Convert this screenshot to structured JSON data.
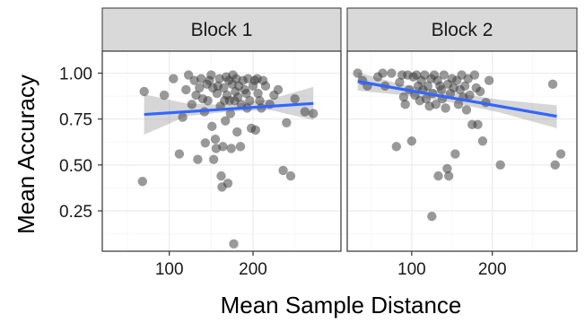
{
  "chart_data": {
    "type": "scatter",
    "facets": [
      "Block 1",
      "Block 2"
    ],
    "xlabel": "Mean Sample Distance",
    "ylabel": "Mean Accuracy",
    "xlim": [
      20,
      305
    ],
    "ylim": [
      0.03,
      1.12
    ],
    "x_ticks": [
      100,
      200
    ],
    "y_ticks": [
      0.25,
      0.5,
      0.75,
      1.0
    ],
    "y_tick_labels": [
      "0.25",
      "0.50",
      "0.75",
      "1.00"
    ],
    "grid": true,
    "colors": {
      "point": "#333333",
      "trend": "#3366ff",
      "ribbon": "#999999",
      "strip": "#d9d9d9",
      "grid_major": "#ebebeb",
      "grid_minor": "#f5f5f5",
      "border": "#333333"
    },
    "panels": [
      {
        "name": "Block 1",
        "points": [
          [
            70,
            0.9
          ],
          [
            68,
            0.41
          ],
          [
            94,
            0.88
          ],
          [
            105,
            0.97
          ],
          [
            112,
            0.56
          ],
          [
            116,
            0.76
          ],
          [
            120,
            0.91
          ],
          [
            123,
            0.99
          ],
          [
            127,
            0.83
          ],
          [
            130,
            0.96
          ],
          [
            132,
            0.88
          ],
          [
            134,
            0.53
          ],
          [
            136,
            0.92
          ],
          [
            138,
            0.97
          ],
          [
            140,
            0.86
          ],
          [
            142,
            0.79
          ],
          [
            143,
            0.62
          ],
          [
            145,
            0.94
          ],
          [
            146,
            0.85
          ],
          [
            148,
            0.96
          ],
          [
            150,
            0.99
          ],
          [
            151,
            0.71
          ],
          [
            152,
            0.92
          ],
          [
            153,
            0.53
          ],
          [
            155,
            0.64
          ],
          [
            156,
            0.59
          ],
          [
            157,
            0.89
          ],
          [
            158,
            0.93
          ],
          [
            160,
            0.97
          ],
          [
            161,
            0.82
          ],
          [
            162,
            0.44
          ],
          [
            163,
            0.38
          ],
          [
            164,
            0.6
          ],
          [
            165,
            0.92
          ],
          [
            166,
            0.85
          ],
          [
            167,
            0.74
          ],
          [
            168,
            0.98
          ],
          [
            169,
            0.88
          ],
          [
            170,
            0.4
          ],
          [
            171,
            0.96
          ],
          [
            172,
            0.85
          ],
          [
            173,
            0.78
          ],
          [
            174,
            0.59
          ],
          [
            175,
            0.94
          ],
          [
            176,
            0.99
          ],
          [
            177,
            0.07
          ],
          [
            178,
            0.85
          ],
          [
            179,
            0.9
          ],
          [
            180,
            0.97
          ],
          [
            181,
            0.68
          ],
          [
            182,
            0.87
          ],
          [
            183,
            0.93
          ],
          [
            185,
            0.6
          ],
          [
            186,
            0.83
          ],
          [
            188,
            0.96
          ],
          [
            190,
            0.91
          ],
          [
            192,
            0.89
          ],
          [
            193,
            0.81
          ],
          [
            194,
            0.97
          ],
          [
            196,
            0.85
          ],
          [
            198,
            0.7
          ],
          [
            200,
            0.93
          ],
          [
            202,
            0.96
          ],
          [
            203,
            0.69
          ],
          [
            205,
            0.97
          ],
          [
            206,
            0.89
          ],
          [
            208,
            0.85
          ],
          [
            210,
            0.81
          ],
          [
            212,
            0.96
          ],
          [
            215,
            0.93
          ],
          [
            220,
            0.83
          ],
          [
            225,
            0.88
          ],
          [
            230,
            0.91
          ],
          [
            236,
            0.47
          ],
          [
            240,
            0.73
          ],
          [
            245,
            0.44
          ],
          [
            250,
            0.86
          ],
          [
            262,
            0.79
          ],
          [
            272,
            0.78
          ]
        ],
        "trend": [
          [
            70,
            0.775
          ],
          [
            272,
            0.835
          ]
        ],
        "ribbon_upper": [
          [
            70,
            0.885
          ],
          [
            120,
            0.835
          ],
          [
            170,
            0.826
          ],
          [
            220,
            0.858
          ],
          [
            272,
            0.925
          ]
        ],
        "ribbon_lower": [
          [
            70,
            0.665
          ],
          [
            120,
            0.765
          ],
          [
            170,
            0.79
          ],
          [
            220,
            0.8
          ],
          [
            272,
            0.745
          ]
        ]
      },
      {
        "name": "Block 2",
        "points": [
          [
            33,
            1.0
          ],
          [
            39,
            0.96
          ],
          [
            45,
            0.93
          ],
          [
            58,
            0.98
          ],
          [
            64,
            1.0
          ],
          [
            67,
            0.93
          ],
          [
            75,
            1.0
          ],
          [
            81,
            0.6
          ],
          [
            85,
            0.95
          ],
          [
            88,
            0.99
          ],
          [
            90,
            0.87
          ],
          [
            92,
            0.83
          ],
          [
            95,
            0.99
          ],
          [
            97,
            0.91
          ],
          [
            100,
            0.63
          ],
          [
            102,
            0.98
          ],
          [
            104,
            0.88
          ],
          [
            106,
            0.99
          ],
          [
            108,
            0.93
          ],
          [
            110,
            0.85
          ],
          [
            112,
            0.96
          ],
          [
            114,
            0.91
          ],
          [
            116,
            0.99
          ],
          [
            118,
            0.86
          ],
          [
            120,
            0.93
          ],
          [
            122,
            0.82
          ],
          [
            124,
            0.97
          ],
          [
            125,
            0.22
          ],
          [
            126,
            0.89
          ],
          [
            128,
            0.99
          ],
          [
            130,
            0.83
          ],
          [
            132,
            0.96
          ],
          [
            133,
            0.44
          ],
          [
            135,
            0.93
          ],
          [
            137,
            0.91
          ],
          [
            138,
            0.86
          ],
          [
            140,
            0.99
          ],
          [
            142,
            0.81
          ],
          [
            144,
            0.48
          ],
          [
            145,
            0.94
          ],
          [
            146,
            0.44
          ],
          [
            148,
            0.89
          ],
          [
            150,
            0.97
          ],
          [
            152,
            0.92
          ],
          [
            154,
            0.56
          ],
          [
            156,
            0.96
          ],
          [
            158,
            0.83
          ],
          [
            160,
            0.91
          ],
          [
            162,
            0.99
          ],
          [
            164,
            0.87
          ],
          [
            166,
            0.93
          ],
          [
            168,
            0.8
          ],
          [
            170,
            0.97
          ],
          [
            172,
            0.88
          ],
          [
            175,
            0.72
          ],
          [
            178,
            0.99
          ],
          [
            180,
            0.92
          ],
          [
            182,
            0.72
          ],
          [
            185,
            0.9
          ],
          [
            188,
            0.63
          ],
          [
            192,
            0.84
          ],
          [
            196,
            0.96
          ],
          [
            210,
            0.5
          ],
          [
            275,
            0.94
          ],
          [
            278,
            0.5
          ],
          [
            285,
            0.56
          ]
        ],
        "trend": [
          [
            33,
            0.955
          ],
          [
            280,
            0.765
          ]
        ],
        "ribbon_upper": [
          [
            33,
            1.005
          ],
          [
            90,
            0.935
          ],
          [
            150,
            0.895
          ],
          [
            210,
            0.855
          ],
          [
            280,
            0.825
          ]
        ],
        "ribbon_lower": [
          [
            33,
            0.905
          ],
          [
            90,
            0.88
          ],
          [
            150,
            0.84
          ],
          [
            210,
            0.785
          ],
          [
            280,
            0.7
          ]
        ]
      }
    ]
  }
}
